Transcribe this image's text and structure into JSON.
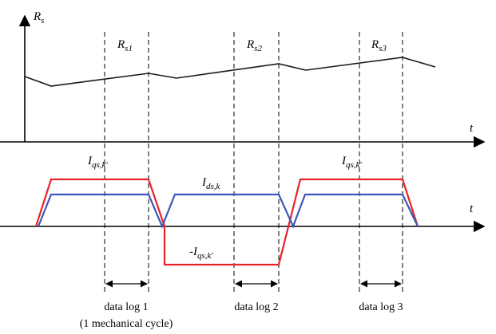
{
  "labels": {
    "rs_axis": "R",
    "rs_axis_sub": "s",
    "t_upper": "t",
    "t_lower": "t",
    "rs1": "R",
    "rs1_sub": "s1",
    "rs2": "R",
    "rs2_sub": "s2",
    "rs3": "R",
    "rs3_sub": "s3",
    "iqs_left": "I",
    "iqs_left_sub": "qs,k'",
    "ids_mid": "I",
    "ids_mid_sub": "ds,k",
    "neg_iqs": "-I",
    "neg_iqs_sub": "qs,k'",
    "iqs_right": "I",
    "iqs_right_sub": "qs,k'",
    "log1": "data log 1",
    "log1_note": "(1 mechanical cycle)",
    "log2": "data log 2",
    "log3": "data log 3"
  },
  "colors": {
    "iqs": "#e8232a",
    "ids": "#3f56b8",
    "rs": "#1a1a1a"
  }
}
